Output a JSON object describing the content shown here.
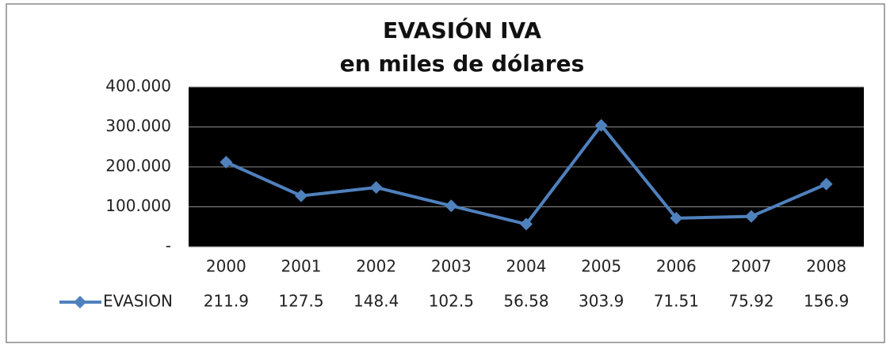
{
  "chart_data": {
    "type": "line",
    "title": "EVASIÓN IVA",
    "subtitle": "en miles de dólares",
    "categories": [
      "2000",
      "2001",
      "2002",
      "2003",
      "2004",
      "2005",
      "2006",
      "2007",
      "2008"
    ],
    "series": [
      {
        "name": "EVASION",
        "color": "#4f81bd",
        "values": [
          211.9,
          127.5,
          148.4,
          102.5,
          56.58,
          303.9,
          71.51,
          75.92,
          156.9
        ]
      }
    ],
    "ylim": [
      0,
      400
    ],
    "yticks": [
      {
        "value": 0,
        "label": "-"
      },
      {
        "value": 100,
        "label": "100.000"
      },
      {
        "value": 200,
        "label": "200.000"
      },
      {
        "value": 300,
        "label": "300.000"
      },
      {
        "value": 400,
        "label": "400.000"
      }
    ],
    "grid": true,
    "plot_background": "#000000"
  }
}
